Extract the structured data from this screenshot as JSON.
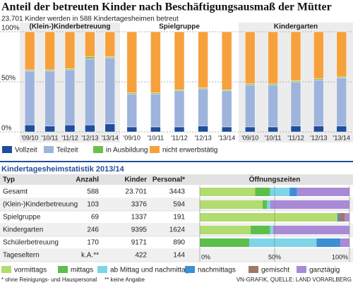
{
  "chart_data": [
    {
      "type": "stacked_bar",
      "title": "Anteil der betreuten Kinder nach Beschäftigungsausmaß der Mütter",
      "subtitle": "23.701 Kinder werden in 588 Kindertagesheimen betreut",
      "ylim": [
        0,
        100
      ],
      "yticks": [
        {
          "value": 0,
          "label": "0%"
        },
        {
          "value": 50,
          "label": "50%"
        },
        {
          "value": 100,
          "label": "100%"
        }
      ],
      "series": [
        {
          "name": "Vollzeit",
          "color": "#1f4e9a"
        },
        {
          "name": "Teilzeit",
          "color": "#9fb4dc"
        },
        {
          "name": "in Ausbildung",
          "color": "#6cc04a"
        },
        {
          "name": "nicht erwerbstätig",
          "color": "#f7a13d"
        }
      ],
      "panels": [
        {
          "title": "(Klein-)Kinderbetreuung",
          "categories": [
            "'09/10",
            "'10/11",
            "'11/12",
            "'12/13",
            "'13/14"
          ],
          "values": [
            [
              7,
              6,
              7,
              7,
              8
            ],
            [
              54,
              55,
              55,
              66,
              66
            ],
            [
              1,
              1,
              1,
              2,
              1
            ],
            [
              38,
              38,
              37,
              25,
              25
            ]
          ]
        },
        {
          "title": "Spielgruppe",
          "categories": [
            "'09/10",
            "'10/11",
            "'11/12",
            "'12/13",
            "'13/14"
          ],
          "values": [
            [
              5,
              5,
              5,
              6,
              5
            ],
            [
              33,
              33,
              36,
              37,
              36
            ],
            [
              1,
              1,
              1,
              1,
              1
            ],
            [
              61,
              61,
              58,
              56,
              58
            ]
          ]
        },
        {
          "title": "Kindergarten",
          "categories": [
            "'09/10",
            "'10/11",
            "'11/12",
            "'12/13",
            "'13/14"
          ],
          "values": [
            [
              5,
              5,
              6,
              6,
              6
            ],
            [
              42,
              42,
              44,
              46,
              48
            ],
            [
              1,
              1,
              1,
              1,
              1
            ],
            [
              52,
              52,
              49,
              47,
              45
            ]
          ]
        }
      ]
    },
    {
      "type": "table_bars",
      "title": "Kindertagesheimstatistik 2013/14",
      "columns": [
        "Typ",
        "Anzahl",
        "Kinder",
        "Personal*",
        "Öffnungszeiten"
      ],
      "rows": [
        [
          "Gesamt",
          "588",
          "23.701",
          "3443"
        ],
        [
          "(Klein-)Kinderbetreuung",
          "103",
          "3376",
          "594"
        ],
        [
          "Spielgruppe",
          "69",
          "1337",
          "191"
        ],
        [
          "Kindergarten",
          "246",
          "9395",
          "1624"
        ],
        [
          "Schülerbetreuung",
          "170",
          "9171",
          "890"
        ],
        [
          "Tageseltern",
          "k.A.**",
          "422",
          "144"
        ]
      ],
      "xlim": [
        0,
        100
      ],
      "xticks": [
        {
          "value": 0,
          "label": "0%"
        },
        {
          "value": 50,
          "label": "50%"
        },
        {
          "value": 100,
          "label": "100%"
        }
      ],
      "series": [
        {
          "name": "vormittags",
          "color": "#b2dc6f",
          "values": [
            37,
            42,
            92,
            34,
            0,
            null
          ]
        },
        {
          "name": "mittags",
          "color": "#5cbf4b",
          "values": [
            10,
            3,
            0,
            13,
            33,
            null
          ]
        },
        {
          "name": "ab Mittag und nachmittags",
          "color": "#7fd4e8",
          "values": [
            13,
            2,
            0,
            2,
            45,
            null
          ]
        },
        {
          "name": "nachmittags",
          "color": "#3d8fd4",
          "values": [
            5,
            0,
            1,
            0,
            16,
            null
          ]
        },
        {
          "name": "gemischt",
          "color": "#a0786a",
          "values": [
            0,
            0,
            4,
            0,
            0,
            null
          ]
        },
        {
          "name": "ganztägig",
          "color": "#a98ad6",
          "values": [
            35,
            53,
            3,
            51,
            6,
            null
          ]
        }
      ]
    }
  ],
  "footnotes": [
    "* ohne Reinigungs- und Hauspersonal",
    "** keine Angabe"
  ],
  "source": "VN-GRAFIK, QUELLE: LAND VORARLBERG"
}
